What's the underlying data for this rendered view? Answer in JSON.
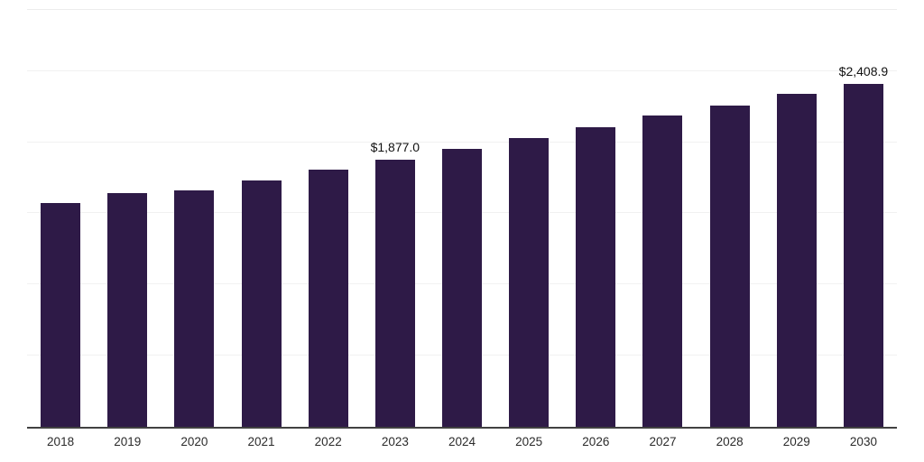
{
  "chart_data": {
    "type": "bar",
    "title": "",
    "xlabel": "",
    "ylabel": "",
    "legend": "none",
    "grid": "faint horizontal gridlines",
    "categories": [
      "2018",
      "2019",
      "2020",
      "2021",
      "2022",
      "2023",
      "2024",
      "2025",
      "2026",
      "2027",
      "2028",
      "2029",
      "2030"
    ],
    "values": [
      1570,
      1640,
      1662,
      1732,
      1806,
      1877.0,
      1952,
      2028,
      2104,
      2186,
      2258,
      2338,
      2408.9
    ],
    "ylim": [
      0,
      2930
    ],
    "gridline_values": [
      500,
      1000,
      1500,
      2000,
      2500
    ],
    "annotations": [
      {
        "category": "2023",
        "text": "$1,877.0"
      },
      {
        "category": "2030",
        "text": "$2,408.9"
      }
    ],
    "colors": {
      "bar": "#2e1a47",
      "axis": "#414141",
      "gridline": "#f1f1f1",
      "value_label": "#111111",
      "tick_label": "#2b2b2b"
    }
  }
}
